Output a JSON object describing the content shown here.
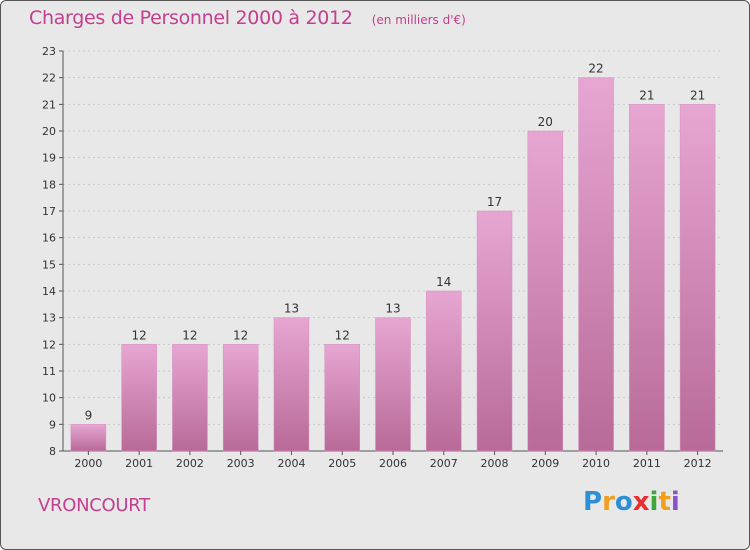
{
  "title": "Charges de Personnel 2000 à 2012",
  "subtitle": "(en milliers d'€)",
  "town": "VRONCOURT",
  "logo": {
    "letters": [
      "P",
      "r",
      "o",
      "x",
      "i",
      "t",
      "i"
    ],
    "colors": [
      "#2f8fd6",
      "#f0a020",
      "#2f8fd6",
      "#e83030",
      "#3aa83a",
      "#f0a020",
      "#8a52c8"
    ]
  },
  "colors": {
    "bar_top": "#e7a6d2",
    "bar_bottom": "#b86a98",
    "text": "#c2408f",
    "axis": "#555555",
    "grid": "#c8c8c8"
  },
  "chart_data": {
    "type": "bar",
    "categories": [
      "2000",
      "2001",
      "2002",
      "2003",
      "2004",
      "2005",
      "2006",
      "2007",
      "2008",
      "2009",
      "2010",
      "2011",
      "2012"
    ],
    "values": [
      9,
      12,
      12,
      12,
      13,
      12,
      13,
      14,
      17,
      20,
      22,
      21,
      21
    ],
    "title": "Charges de Personnel 2000 à 2012",
    "ylim": [
      8,
      23
    ],
    "yticks": [
      8,
      9,
      10,
      11,
      12,
      13,
      14,
      15,
      16,
      17,
      18,
      19,
      20,
      21,
      22,
      23
    ],
    "grid": true
  }
}
